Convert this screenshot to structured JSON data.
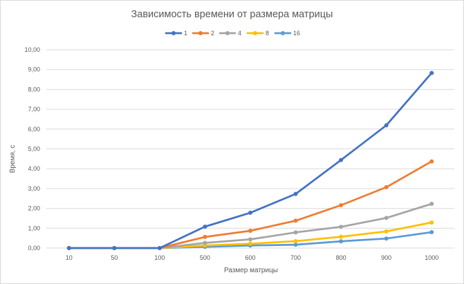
{
  "chart_data": {
    "type": "line",
    "title": "Зависимость времени от размера матрицы",
    "xlabel": "Размер матрицы",
    "ylabel": "Время, с",
    "categories": [
      "10",
      "50",
      "100",
      "500",
      "600",
      "700",
      "800",
      "900",
      "1000"
    ],
    "ylim": [
      0,
      10
    ],
    "yticks": [
      "0,00",
      "1,00",
      "2,00",
      "3,00",
      "4,00",
      "5,00",
      "6,00",
      "7,00",
      "8,00",
      "9,00",
      "10,00"
    ],
    "grid": true,
    "legend_position": "top",
    "series": [
      {
        "name": "1",
        "color": "#4472C4",
        "values": [
          0,
          0,
          0,
          1.08,
          1.78,
          2.73,
          4.44,
          6.19,
          8.83
        ]
      },
      {
        "name": "2",
        "color": "#ED7D31",
        "values": [
          0,
          0,
          0,
          0.56,
          0.87,
          1.38,
          2.16,
          3.07,
          4.37
        ]
      },
      {
        "name": "4",
        "color": "#A5A5A5",
        "values": [
          0,
          0,
          0,
          0.26,
          0.44,
          0.79,
          1.07,
          1.52,
          2.23
        ]
      },
      {
        "name": "8",
        "color": "#FFC000",
        "values": [
          0,
          0,
          0,
          0.13,
          0.22,
          0.35,
          0.57,
          0.84,
          1.29
        ]
      },
      {
        "name": "16",
        "color": "#5B9BD5",
        "values": [
          0,
          0,
          0,
          0.06,
          0.13,
          0.17,
          0.34,
          0.48,
          0.8
        ]
      }
    ]
  }
}
